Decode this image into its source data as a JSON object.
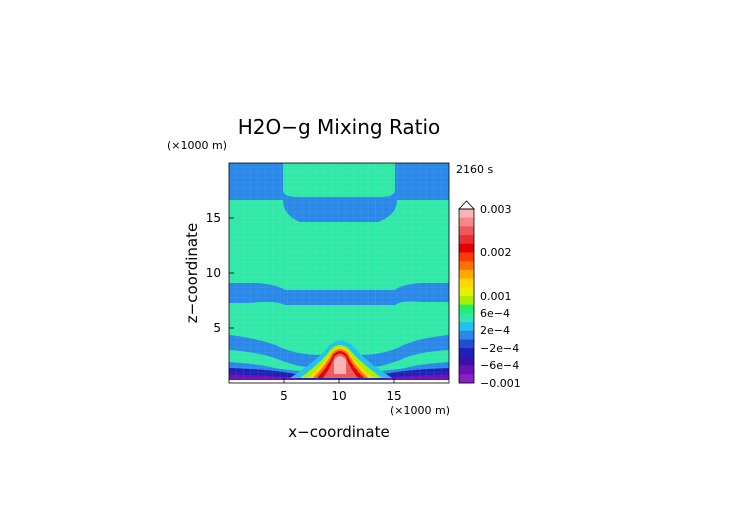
{
  "chart_data": {
    "type": "heatmap",
    "title": "H2O−g Mixing Ratio",
    "time_label": "2160 s",
    "xlabel": "x−coordinate",
    "ylabel": "z−coordinate",
    "x_unit": "(×1000 m)",
    "y_unit": "(×1000 m)",
    "xlim": [
      0,
      20
    ],
    "ylim": [
      0,
      20
    ],
    "x_ticks": [
      5,
      10,
      15
    ],
    "y_ticks": [
      5,
      10,
      15
    ],
    "grid": true,
    "legend_position": "right",
    "colorbar": {
      "labels": [
        "0.003",
        "0.002",
        "0.001",
        "6e−4",
        "2e−4",
        "−2e−4",
        "−6e−4",
        "−0.001"
      ],
      "colors": [
        "#f8b4b4",
        "#f48888",
        "#ef5858",
        "#e83030",
        "#e00000",
        "#ff3a00",
        "#ff7000",
        "#ffaa00",
        "#ffd700",
        "#e8f000",
        "#a8f000",
        "#20f070",
        "#30e8a8",
        "#20c0f0",
        "#2a88e8",
        "#1f4fd0",
        "#2020b8",
        "#3a10a8",
        "#6a10b8",
        "#8a20c8"
      ]
    },
    "regions": [
      {
        "name": "upper-band",
        "color": "#2a88e8"
      },
      {
        "name": "central-band",
        "color": "#30e8a8"
      },
      {
        "name": "surface-minimum",
        "color": "#2020b8"
      },
      {
        "name": "surface-maximum",
        "color": "#f8b4b4"
      }
    ]
  }
}
